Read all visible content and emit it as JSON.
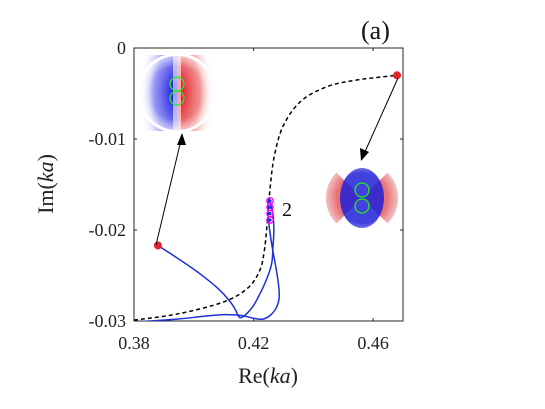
{
  "chart_data": {
    "type": "line",
    "panel_label": "(a)",
    "xlabel_prefix": "Re(",
    "xlabel_var": "ka",
    "xlabel_suffix": ")",
    "ylabel_prefix": "Im(",
    "ylabel_var": "ka",
    "ylabel_suffix": ")",
    "xlim": [
      0.38,
      0.47
    ],
    "ylim": [
      -0.03,
      0
    ],
    "xticks": [
      0.38,
      0.42,
      0.46
    ],
    "xtick_labels": [
      "0.38",
      "0.42",
      "0.46"
    ],
    "yticks": [
      0,
      -0.01,
      -0.02,
      -0.03
    ],
    "ytick_labels": [
      "0",
      "-0.01",
      "-0.02",
      "-0.03"
    ],
    "grid": false,
    "annotation": "2",
    "colors": {
      "dashed": "#000000",
      "blue": "#1f2fd6",
      "marker": "#e8222a",
      "loop_marker": "#ff00ff"
    },
    "series": [
      {
        "style": "dashed",
        "x": [
          0.38,
          0.395,
          0.41,
          0.418,
          0.422,
          0.4235,
          0.4245,
          0.4255,
          0.427,
          0.43,
          0.436,
          0.445,
          0.455,
          0.468
        ],
        "y": [
          -0.0299,
          -0.0292,
          -0.0279,
          -0.0264,
          -0.0245,
          -0.0225,
          -0.0195,
          -0.0155,
          -0.0118,
          -0.0085,
          -0.0058,
          -0.0042,
          -0.0035,
          -0.003
        ]
      },
      {
        "style": "solid",
        "x": [
          0.388,
          0.395,
          0.402,
          0.408,
          0.412,
          0.414,
          0.415,
          0.416,
          0.418,
          0.42,
          0.422,
          0.424,
          0.426,
          0.4265,
          0.4268,
          0.4265,
          0.4258,
          0.4252,
          0.4248,
          0.4252,
          0.4262,
          0.4272,
          0.428,
          0.4285,
          0.4285,
          0.4275,
          0.4255,
          0.423,
          0.42,
          0.416,
          0.41,
          0.403,
          0.394,
          0.38
        ],
        "y": [
          -0.0217,
          -0.0232,
          -0.0248,
          -0.0264,
          -0.0278,
          -0.0288,
          -0.0295,
          -0.0296,
          -0.0291,
          -0.0283,
          -0.0271,
          -0.0257,
          -0.0238,
          -0.0218,
          -0.02,
          -0.0183,
          -0.0172,
          -0.0166,
          -0.0175,
          -0.0195,
          -0.0218,
          -0.0236,
          -0.0252,
          -0.0265,
          -0.0276,
          -0.0286,
          -0.0294,
          -0.0298,
          -0.0297,
          -0.0294,
          -0.0293,
          -0.0295,
          -0.0298,
          -0.0301
        ]
      }
    ],
    "endpoints": [
      {
        "x": 0.388,
        "y": -0.0217
      },
      {
        "x": 0.468,
        "y": -0.003
      }
    ],
    "loop_markers": [
      {
        "x": 0.4255,
        "y": -0.0168
      },
      {
        "x": 0.4255,
        "y": -0.0175
      },
      {
        "x": 0.4255,
        "y": -0.0182
      },
      {
        "x": 0.4255,
        "y": -0.0189
      }
    ]
  }
}
